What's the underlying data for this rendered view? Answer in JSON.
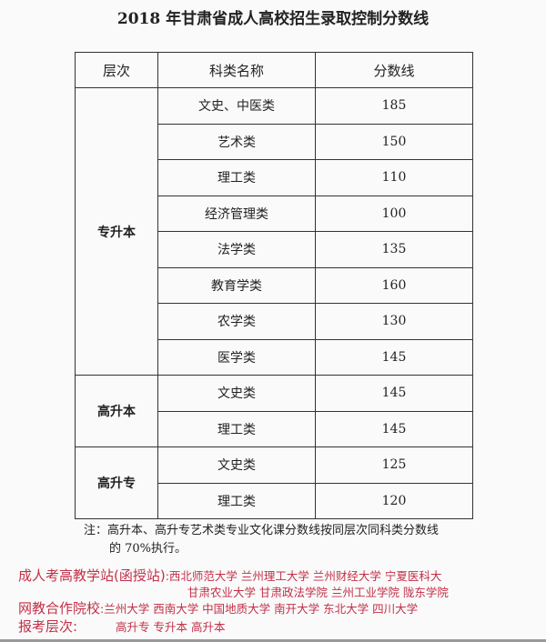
{
  "title": "2018 年甘肃省成人高校招生录取控制分数线",
  "headers": [
    "层次",
    "科类名称",
    "分数线"
  ],
  "groups": [
    {
      "level": "专升本",
      "rows": [
        [
          "文史、中医类",
          "185"
        ],
        [
          "艺术类",
          "150"
        ],
        [
          "理工类",
          "110"
        ],
        [
          "经济管理类",
          "100"
        ],
        [
          "法学类",
          "135"
        ],
        [
          "教育学类",
          "160"
        ],
        [
          "农学类",
          "130"
        ],
        [
          "医学类",
          "145"
        ]
      ]
    },
    {
      "level": "高升本",
      "rows": [
        [
          "文史类",
          "145"
        ],
        [
          "理工类",
          "145"
        ]
      ]
    },
    {
      "level": "高升专",
      "rows": [
        [
          "文史类",
          "125"
        ],
        [
          "理工类",
          "120"
        ]
      ]
    }
  ],
  "note": {
    "line1": "注：高升本、高升专艺术类专业文化课分数线按同层次同科类分数线",
    "line2": "的 70%执行。"
  },
  "ad": {
    "station_label": "成人考高教学站(函授站)",
    "station_line1": ":西北师范大学 兰州理工大学 兰州财经大学 宁夏医科大",
    "station_line2": "甘肃农业大学 甘肃政法学院 兰州工业学院 陇东学院",
    "online_label": "网教合作院校",
    "online_list": ":兰州大学 西南大学 中国地质大学 南开大学 东北大学 四川大学",
    "levels_label": "报考层次:",
    "levels_list": "高升专 专升本 高升本"
  },
  "colors": {
    "accent": "#c23048"
  }
}
